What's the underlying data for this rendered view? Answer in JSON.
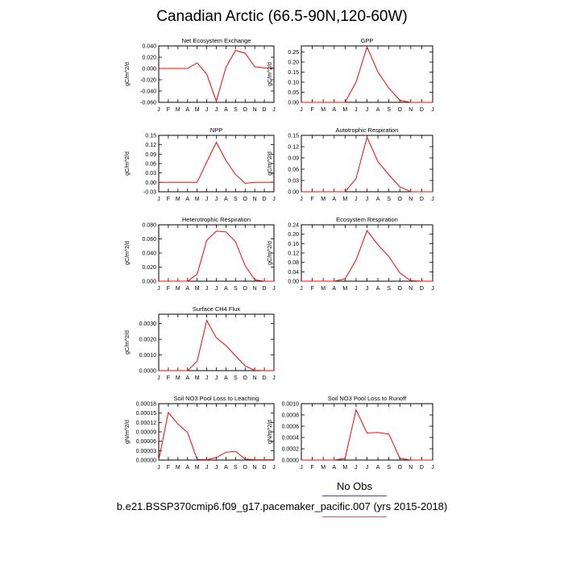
{
  "title": "Canadian Arctic (66.5-90N,120-60W)",
  "legend": {
    "no_obs": "No Obs",
    "case": "b.e21.BSSP370cmip6.f09_g17.pacemaker_pacific.007 (yrs 2015-2018)"
  },
  "colors": {
    "line": "#ff0000",
    "no_obs_rule": "#3a4aa8",
    "case_rule": "#e0506a"
  },
  "chart_data": [
    {
      "type": "line",
      "title": "Net Ecosystem Exchange",
      "ylabel": "gC/m^2/d",
      "x": [
        "J",
        "F",
        "M",
        "A",
        "M",
        "J",
        "J",
        "A",
        "S",
        "O",
        "N",
        "D",
        "J"
      ],
      "ylim": [
        -0.06,
        0.04
      ],
      "yticks": [
        "0.040",
        "0.020",
        "0.000",
        "-0.020",
        "-0.040",
        "-0.060"
      ],
      "ytick_values": [
        0.04,
        0.02,
        0.0,
        -0.02,
        -0.04,
        -0.06
      ],
      "values": [
        0.0,
        0.0,
        0.0,
        0.0,
        0.01,
        -0.01,
        -0.058,
        0.002,
        0.032,
        0.027,
        0.003,
        0.001,
        0.001
      ]
    },
    {
      "type": "line",
      "title": "GPP",
      "ylabel": "gC/m^2/d",
      "x": [
        "J",
        "F",
        "M",
        "A",
        "M",
        "J",
        "J",
        "A",
        "S",
        "O",
        "N",
        "D",
        "J"
      ],
      "ylim": [
        0,
        0.28
      ],
      "yticks": [
        "0.25",
        "0.20",
        "0.15",
        "0.10",
        "0.05",
        "0.00"
      ],
      "ytick_values": [
        0.25,
        0.2,
        0.15,
        0.1,
        0.05,
        0.0
      ],
      "values": [
        0,
        0,
        0,
        0,
        0,
        0.1,
        0.275,
        0.15,
        0.07,
        0.01,
        0,
        0,
        0
      ]
    },
    {
      "type": "line",
      "title": "NPP",
      "ylabel": "gC/m^2/d",
      "x": [
        "J",
        "F",
        "M",
        "A",
        "M",
        "J",
        "J",
        "A",
        "S",
        "O",
        "N",
        "D",
        "J"
      ],
      "ylim": [
        -0.03,
        0.15
      ],
      "yticks": [
        "0.15",
        "0.12",
        "0.09",
        "0.06",
        "0.03",
        "0.00",
        "-0.03"
      ],
      "ytick_values": [
        0.15,
        0.12,
        0.09,
        0.06,
        0.03,
        0.0,
        -0.03
      ],
      "values": [
        0,
        0,
        0,
        0,
        0,
        0.065,
        0.128,
        0.07,
        0.025,
        -0.003,
        0,
        0,
        0
      ]
    },
    {
      "type": "line",
      "title": "Autotrophic Respiration",
      "ylabel": "gC/m^2/d",
      "x": [
        "J",
        "F",
        "M",
        "A",
        "M",
        "J",
        "J",
        "A",
        "S",
        "O",
        "N",
        "D",
        "J"
      ],
      "ylim": [
        0,
        0.15
      ],
      "yticks": [
        "0.15",
        "0.12",
        "0.09",
        "0.06",
        "0.03",
        "0.00"
      ],
      "ytick_values": [
        0.15,
        0.12,
        0.09,
        0.06,
        0.03,
        0.0
      ],
      "values": [
        0,
        0,
        0,
        0,
        0,
        0.035,
        0.145,
        0.08,
        0.045,
        0.013,
        0,
        0,
        0
      ]
    },
    {
      "type": "line",
      "title": "Heterotrophic Respiration",
      "ylabel": "gC/m^2/d",
      "x": [
        "J",
        "F",
        "M",
        "A",
        "M",
        "J",
        "J",
        "A",
        "S",
        "O",
        "N",
        "D",
        "J"
      ],
      "ylim": [
        0,
        0.08
      ],
      "yticks": [
        "0.080",
        "0.060",
        "0.040",
        "0.020",
        "0.000"
      ],
      "ytick_values": [
        0.08,
        0.06,
        0.04,
        0.02,
        0.0
      ],
      "values": [
        0,
        0,
        0,
        0,
        0.01,
        0.058,
        0.071,
        0.07,
        0.056,
        0.022,
        0.002,
        0,
        0
      ]
    },
    {
      "type": "line",
      "title": "Ecosystem Respiration",
      "ylabel": "gC/m^2/d",
      "x": [
        "J",
        "F",
        "M",
        "A",
        "M",
        "J",
        "J",
        "A",
        "S",
        "O",
        "N",
        "D",
        "J"
      ],
      "ylim": [
        0,
        0.24
      ],
      "yticks": [
        "0.24",
        "0.20",
        "0.16",
        "0.12",
        "0.08",
        "0.04",
        "0.00"
      ],
      "ytick_values": [
        0.24,
        0.2,
        0.16,
        0.12,
        0.08,
        0.04,
        0.0
      ],
      "values": [
        0,
        0,
        0,
        0,
        0.01,
        0.09,
        0.215,
        0.155,
        0.105,
        0.035,
        0.002,
        0,
        0
      ]
    },
    {
      "type": "line",
      "title": "Surface CH4 Flux",
      "ylabel": "gC/m^2/d",
      "x": [
        "J",
        "F",
        "M",
        "A",
        "M",
        "J",
        "J",
        "A",
        "S",
        "O",
        "N",
        "D",
        "J"
      ],
      "ylim": [
        0,
        0.0036
      ],
      "yticks": [
        "0.0030",
        "0.0020",
        "0.0010",
        "0.0000"
      ],
      "ytick_values": [
        0.003,
        0.002,
        0.001,
        0.0
      ],
      "values": [
        0,
        0,
        0,
        0,
        0.0006,
        0.0032,
        0.0021,
        0.0016,
        0.00095,
        0.0003,
        2e-05,
        0,
        0
      ]
    },
    {
      "type": "line",
      "title": "Soil NO3 Pool Loss to Leaching",
      "ylabel": "gN/m^2/d",
      "x": [
        "J",
        "F",
        "M",
        "A",
        "M",
        "J",
        "J",
        "A",
        "S",
        "O",
        "N",
        "D",
        "J"
      ],
      "ylim": [
        0,
        0.00018
      ],
      "yticks": [
        "0.00018",
        "0.00015",
        "0.00012",
        "0.00009",
        "0.00006",
        "0.00003",
        "0.00000"
      ],
      "ytick_values": [
        0.00018,
        0.00015,
        0.00012,
        9e-05,
        6e-05,
        3e-05,
        0.0
      ],
      "values": [
        0,
        0.000152,
        0.000115,
        8.8e-05,
        2e-06,
        1e-06,
        8e-06,
        2.5e-05,
        2.8e-05,
        3e-06,
        1e-06,
        1e-06,
        1e-06
      ]
    },
    {
      "type": "line",
      "title": "Soil NO3 Pool Loss to Runoff",
      "ylabel": "gN/m^2/d",
      "x": [
        "J",
        "F",
        "M",
        "A",
        "M",
        "J",
        "J",
        "A",
        "S",
        "O",
        "N",
        "D",
        "J"
      ],
      "ylim": [
        0,
        0.001
      ],
      "yticks": [
        "0.0010",
        "0.0008",
        "0.0006",
        "0.0004",
        "0.0002",
        "0.0000"
      ],
      "ytick_values": [
        0.001,
        0.0008,
        0.0006,
        0.0004,
        0.0002,
        0.0
      ],
      "values": [
        0,
        0,
        0,
        0,
        3e-05,
        0.00089,
        0.00048,
        0.00049,
        0.00046,
        3e-05,
        0,
        0,
        0
      ]
    }
  ]
}
